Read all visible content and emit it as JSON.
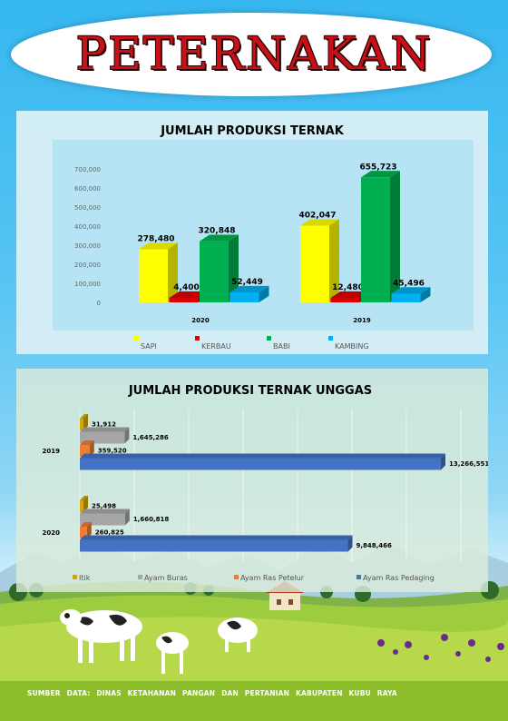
{
  "page": {
    "title": "PETERNAKAN",
    "footer": "SUMBER DATA: DINAS KETAHANAN PANGAN DAN PERTANIAN KABUPATEN KUBU RAYA"
  },
  "colors": {
    "sapi": "#ffff00",
    "kerbau": "#dd0000",
    "babi": "#00b050",
    "kambing": "#00b0f0",
    "itik": "#d4a800",
    "ayam_buras": "#a6a6a6",
    "ayam_ras_petelur": "#ed7d31",
    "ayam_ras_pedaging": "#4472c4"
  },
  "chart_data": [
    {
      "type": "bar",
      "title": "JUMLAH PRODUKSI TERNAK",
      "categories": [
        "2020",
        "2019"
      ],
      "series": [
        {
          "name": "SAPI",
          "values": [
            278480,
            402047
          ],
          "labels": [
            "278,480",
            "402,047"
          ]
        },
        {
          "name": "KERBAU",
          "values": [
            4400,
            12480
          ],
          "labels": [
            "4,400",
            "12,480"
          ]
        },
        {
          "name": "BABI",
          "values": [
            320848,
            655723
          ],
          "labels": [
            "320,848",
            "655,723"
          ]
        },
        {
          "name": "KAMBING",
          "values": [
            52449,
            45496
          ],
          "labels": [
            "52,449",
            "45,496"
          ]
        }
      ],
      "yticks": [
        "0",
        "100,000",
        "200,000",
        "300,000",
        "400,000",
        "500,000",
        "600,000",
        "700,000"
      ],
      "ylim": [
        0,
        700000
      ],
      "legend": "bottom"
    },
    {
      "type": "bar",
      "orientation": "horizontal",
      "title": "JUMLAH PRODUKSI TERNAK UNGGAS",
      "categories": [
        "2019",
        "2020"
      ],
      "series": [
        {
          "name": "Itik",
          "values": [
            31912,
            25498
          ],
          "labels": [
            "31,912",
            "25,498"
          ]
        },
        {
          "name": "Ayam Buras",
          "values": [
            1645286,
            1660818
          ],
          "labels": [
            "1,645,286",
            "1,660,818"
          ]
        },
        {
          "name": "Ayam Ras Petelur",
          "values": [
            359520,
            260825
          ],
          "labels": [
            "359,520",
            "260,825"
          ]
        },
        {
          "name": "Ayam Ras Pedaging",
          "values": [
            13266551,
            9848466
          ],
          "labels": [
            "13,266,551",
            "9,848,466"
          ]
        }
      ],
      "xlim": [
        0,
        14000000
      ],
      "legend": "bottom"
    }
  ]
}
